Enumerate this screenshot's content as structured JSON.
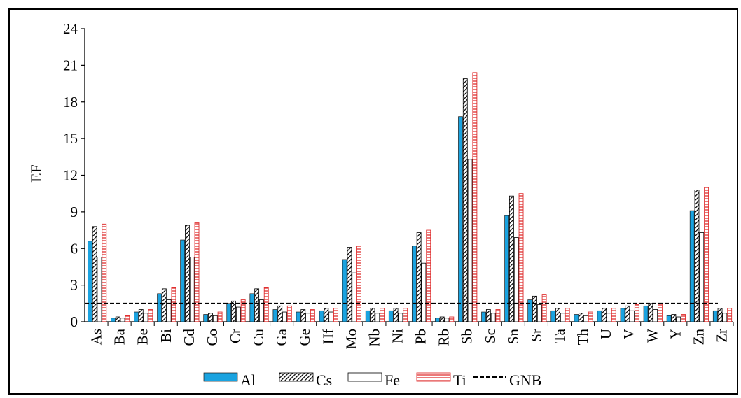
{
  "chart_data": {
    "type": "bar",
    "ylabel": "EF",
    "xlabel": "",
    "title": "",
    "ylim": [
      0,
      24
    ],
    "yticks": [
      0,
      3,
      6,
      9,
      12,
      15,
      18,
      21,
      24
    ],
    "categories": [
      "As",
      "Ba",
      "Be",
      "Bi",
      "Cd",
      "Co",
      "Cr",
      "Cu",
      "Ga",
      "Ge",
      "Hf",
      "Mo",
      "Nb",
      "Ni",
      "Pb",
      "Rb",
      "Sb",
      "Sc",
      "Sn",
      "Sr",
      "Ta",
      "Th",
      "U",
      "V",
      "W",
      "Y",
      "Zn",
      "Zr"
    ],
    "series": [
      {
        "name": "Al",
        "color": "#1aa3e0",
        "pattern": "solid",
        "values": [
          6.6,
          0.3,
          0.8,
          2.3,
          6.7,
          0.6,
          1.5,
          2.3,
          1.0,
          0.8,
          0.9,
          5.1,
          0.9,
          0.9,
          6.2,
          0.3,
          16.8,
          0.8,
          8.7,
          1.8,
          0.9,
          0.6,
          0.9,
          1.1,
          1.3,
          0.5,
          9.1,
          0.9
        ]
      },
      {
        "name": "Cs",
        "color": "#000000",
        "pattern": "diagonal-hatch",
        "values": [
          7.8,
          0.4,
          1.0,
          2.7,
          7.9,
          0.7,
          1.7,
          2.7,
          1.3,
          1.0,
          1.1,
          6.1,
          1.1,
          1.1,
          7.3,
          0.4,
          19.9,
          1.0,
          10.3,
          2.1,
          1.1,
          0.7,
          1.1,
          1.3,
          1.5,
          0.6,
          10.8,
          1.1
        ]
      },
      {
        "name": "Fe",
        "color": "#ffffff",
        "pattern": "white",
        "values": [
          5.3,
          0.3,
          0.7,
          1.8,
          5.3,
          0.5,
          1.2,
          1.8,
          0.8,
          0.7,
          0.8,
          4.0,
          0.7,
          0.7,
          4.8,
          0.3,
          13.3,
          0.7,
          6.9,
          1.4,
          0.7,
          0.5,
          0.7,
          0.9,
          1.0,
          0.4,
          7.3,
          0.7
        ]
      },
      {
        "name": "Ti",
        "color": "#e03030",
        "pattern": "horizontal-lines",
        "values": [
          8.0,
          0.5,
          1.0,
          2.8,
          8.1,
          0.8,
          1.8,
          2.8,
          1.3,
          1.0,
          1.1,
          6.2,
          1.1,
          1.1,
          7.5,
          0.4,
          20.4,
          1.0,
          10.5,
          2.2,
          1.1,
          0.8,
          1.1,
          1.4,
          1.5,
          0.6,
          11.0,
          1.1
        ]
      }
    ],
    "reference_line": {
      "name": "GNB",
      "value": 1.5,
      "style": "dashed",
      "color": "#000000"
    },
    "legend": {
      "position": "bottom-center",
      "entries": [
        "Al",
        "Cs",
        "Fe",
        "Ti",
        "GNB"
      ]
    },
    "grid": false
  }
}
